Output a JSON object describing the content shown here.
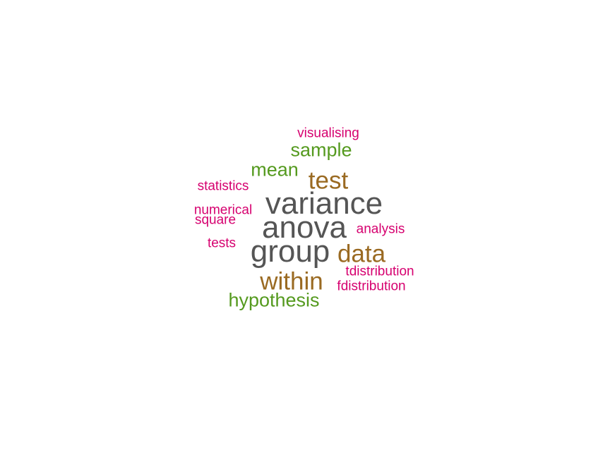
{
  "colors": {
    "dark_gray": "#555555",
    "brown": "#9a6a22",
    "green": "#559a1f",
    "magenta": "#d6006f"
  },
  "words": {
    "variance": "variance",
    "anova": "anova",
    "group": "group",
    "test": "test",
    "data": "data",
    "within": "within",
    "hypothesis": "hypothesis",
    "sample": "sample",
    "mean": "mean",
    "visualising": "visualising",
    "statistics": "statistics",
    "numerical": "numerical",
    "square": "square",
    "tests": "tests",
    "analysis": "analysis",
    "tdistribution": "tdistribution",
    "fdistribution": "fdistribution"
  }
}
